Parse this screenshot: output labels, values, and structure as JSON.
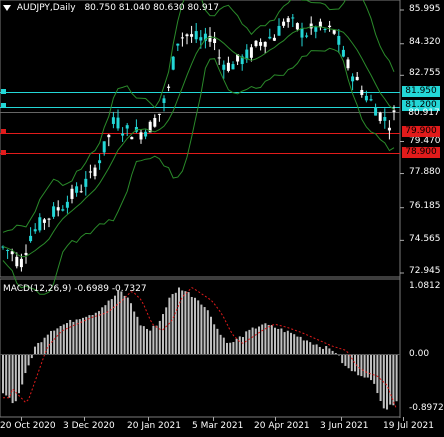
{
  "header": {
    "symbol_tf": "AUDJPY,Daily",
    "ohlc": "80.750 81.040 80.630 80.917",
    "menu_icon": "triangle-down-icon"
  },
  "price_axis": {
    "labels": [
      "85.995",
      "84.320",
      "82.755",
      "81.950",
      "81.200",
      "80.917",
      "79.900",
      "79.470",
      "78.900",
      "77.880",
      "76.185",
      "74.565",
      "72.945"
    ],
    "ticks": [
      85.995,
      84.32,
      82.755,
      79.47,
      77.88,
      76.185,
      74.565,
      72.945
    ],
    "range": [
      72.945,
      85.995
    ]
  },
  "levels": [
    {
      "price": 81.95,
      "label": "81.950",
      "color": "#23d6d6"
    },
    {
      "price": 81.2,
      "label": "81.200",
      "color": "#23d6d6"
    },
    {
      "price": 79.9,
      "label": "79.900",
      "color": "#e11b1b"
    },
    {
      "price": 78.9,
      "label": "78.900",
      "color": "#e11b1b"
    }
  ],
  "current_price": {
    "price": 80.917,
    "label": "80.917"
  },
  "macd": {
    "title": "MACD(12,26,9) -0.6989 -0.7327",
    "labels": [
      "1.0812",
      "0.00",
      "-0.8972"
    ],
    "range": [
      -0.8972,
      1.0812
    ]
  },
  "time_axis": {
    "labels": [
      "20 Oct 2020",
      "3 Dec 2020",
      "20 Jan 2021",
      "5 Mar 2021",
      "20 Apr 2021",
      "3 Jun 2021",
      "19 Jul 2021"
    ]
  },
  "colors": {
    "bg": "#000000",
    "bull": "#23d6d6",
    "bear": "#ffffff",
    "bollinger": "#2a8a2a",
    "histogram": "#c0c0c0",
    "signal": "#e11b1b",
    "support": "#e11b1b",
    "resistance": "#23d6d6"
  }
}
